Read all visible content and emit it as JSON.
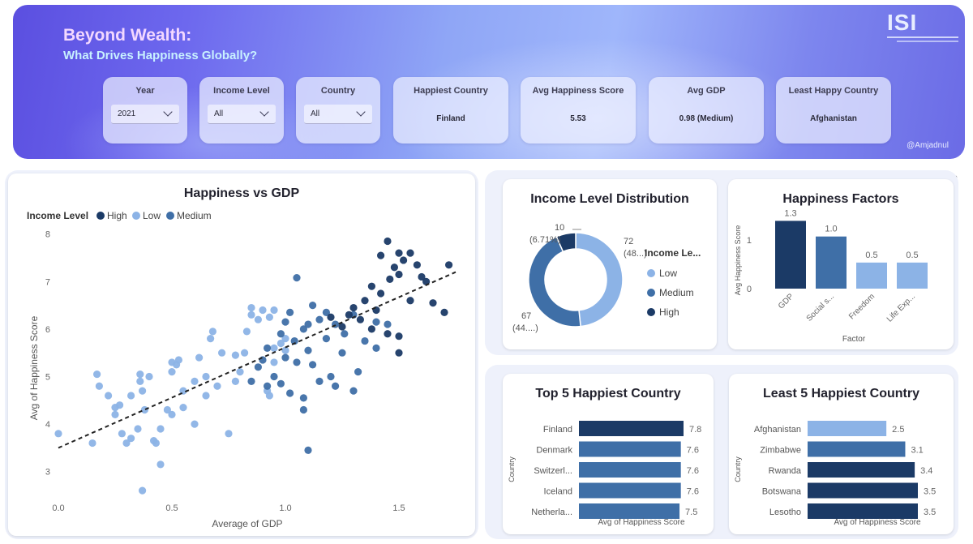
{
  "header": {
    "title": "Beyond Wealth:",
    "subtitle": "What Drives Happiness Globally?",
    "logo_text": "ISI",
    "credit": "@Amjadnul"
  },
  "filters": [
    {
      "label": "Year",
      "value": "2021"
    },
    {
      "label": "Income Level",
      "value": "All"
    },
    {
      "label": "Country",
      "value": "All"
    }
  ],
  "kpis": [
    {
      "label": "Happiest Country",
      "value": "Finland"
    },
    {
      "label": "Avg Happiness Score",
      "value": "5.53"
    },
    {
      "label": "Avg GDP",
      "value": "0.98 (Medium)"
    },
    {
      "label": "Least Happy Country",
      "value": "Afghanistan"
    }
  ],
  "colors": {
    "high": "#1b3a66",
    "medium": "#3f6fa7",
    "low": "#8cb3e6"
  },
  "icons": [
    "chevron-down-icon",
    "more-options-icon"
  ],
  "scatter": {
    "title": "Happiness vs GDP",
    "legend_title": "Income Level",
    "legend": [
      "High",
      "Low",
      "Medium"
    ],
    "xlabel": "Average of GDP",
    "ylabel": "Avg of Happiness Score",
    "xticks": [
      "0.0",
      "0.5",
      "1.0",
      "1.5"
    ],
    "yticks": [
      "3",
      "4",
      "5",
      "6",
      "7",
      "8"
    ]
  },
  "donut": {
    "title": "Income Level Distribution",
    "legend_title": "Income Le...",
    "legend": [
      "Low",
      "Medium",
      "High"
    ],
    "labels": [
      {
        "line1": "72",
        "line2": "(48...)"
      },
      {
        "line1": "67",
        "line2": "(44....)"
      },
      {
        "line1": "10",
        "line2": "(6.71%)"
      }
    ]
  },
  "factors": {
    "title": "Happiness Factors",
    "xlabel": "Factor",
    "ylabel": "Avg Happiness Score",
    "yticks": [
      "0",
      "1"
    ],
    "categories": [
      "GDP",
      "Social s...",
      "Freedom",
      "Life Exp..."
    ],
    "value_labels": [
      "1.3",
      "1.0",
      "0.5",
      "0.5"
    ]
  },
  "top5": {
    "title": "Top 5 Happiest Country",
    "ylabel": "Country",
    "xlabel": "Avg of Happiness Score",
    "countries": [
      "Finland",
      "Denmark",
      "Switzerl...",
      "Iceland",
      "Netherla..."
    ],
    "value_labels": [
      "7.8",
      "7.6",
      "7.6",
      "7.6",
      "7.5"
    ]
  },
  "least5": {
    "title": "Least 5 Happiest Country",
    "ylabel": "Country",
    "xlabel": "Avg of Happiness Score",
    "countries": [
      "Afghanistan",
      "Zimbabwe",
      "Rwanda",
      "Botswana",
      "Lesotho"
    ],
    "value_labels": [
      "2.5",
      "3.1",
      "3.4",
      "3.5",
      "3.5"
    ]
  },
  "chart_data": [
    {
      "type": "scatter",
      "title": "Happiness vs GDP",
      "xlabel": "Average of GDP",
      "ylabel": "Avg of Happiness Score",
      "xlim": [
        0,
        1.75
      ],
      "ylim": [
        2.5,
        8.2
      ],
      "trendline": {
        "x": [
          0,
          1.75
        ],
        "y": [
          3.5,
          7.2
        ]
      },
      "series": [
        {
          "name": "High",
          "points": [
            [
              1.45,
              7.85
            ],
            [
              1.5,
              7.6
            ],
            [
              1.52,
              7.45
            ],
            [
              1.48,
              7.3
            ],
            [
              1.42,
              7.55
            ],
            [
              1.55,
              7.6
            ],
            [
              1.58,
              7.35
            ],
            [
              1.6,
              7.1
            ],
            [
              1.72,
              7.35
            ],
            [
              1.62,
              7.0
            ],
            [
              1.5,
              7.15
            ],
            [
              1.46,
              7.05
            ],
            [
              1.38,
              6.9
            ],
            [
              1.42,
              6.75
            ],
            [
              1.55,
              6.6
            ],
            [
              1.65,
              6.55
            ],
            [
              1.7,
              6.35
            ],
            [
              1.35,
              6.6
            ],
            [
              1.3,
              6.45
            ],
            [
              1.4,
              6.4
            ],
            [
              1.28,
              6.3
            ],
            [
              1.2,
              6.25
            ],
            [
              1.33,
              6.2
            ],
            [
              1.25,
              6.05
            ],
            [
              1.38,
              6.0
            ],
            [
              1.45,
              5.9
            ],
            [
              1.5,
              5.85
            ],
            [
              1.5,
              5.5
            ]
          ]
        },
        {
          "name": "Medium",
          "points": [
            [
              1.05,
              7.08
            ],
            [
              1.3,
              6.3
            ],
            [
              1.22,
              6.1
            ],
            [
              1.12,
              6.5
            ],
            [
              1.02,
              6.35
            ],
            [
              1.15,
              6.2
            ],
            [
              1.08,
              6.0
            ],
            [
              0.98,
              5.9
            ],
            [
              1.04,
              5.75
            ],
            [
              1.18,
              5.8
            ],
            [
              1.1,
              5.55
            ],
            [
              1.0,
              5.4
            ],
            [
              0.92,
              5.6
            ],
            [
              1.05,
              5.3
            ],
            [
              1.12,
              5.25
            ],
            [
              1.25,
              5.5
            ],
            [
              1.2,
              5.0
            ],
            [
              1.32,
              5.1
            ],
            [
              1.22,
              4.8
            ],
            [
              1.3,
              4.7
            ],
            [
              1.4,
              5.6
            ],
            [
              1.45,
              6.1
            ],
            [
              1.1,
              6.1
            ],
            [
              1.0,
              6.15
            ],
            [
              0.95,
              5.0
            ],
            [
              0.98,
              4.85
            ],
            [
              1.02,
              4.65
            ],
            [
              0.85,
              4.9
            ],
            [
              0.88,
              5.2
            ],
            [
              0.9,
              5.35
            ],
            [
              0.92,
              4.8
            ],
            [
              1.15,
              4.9
            ],
            [
              1.08,
              4.55
            ],
            [
              1.35,
              5.75
            ],
            [
              1.26,
              5.9
            ],
            [
              1.18,
              6.35
            ],
            [
              1.4,
              6.15
            ],
            [
              1.1,
              3.45
            ],
            [
              1.08,
              4.3
            ]
          ]
        },
        {
          "name": "Low",
          "points": [
            [
              0.0,
              3.8
            ],
            [
              0.15,
              3.6
            ],
            [
              0.18,
              4.8
            ],
            [
              0.17,
              5.05
            ],
            [
              0.22,
              4.6
            ],
            [
              0.25,
              4.2
            ],
            [
              0.27,
              4.4
            ],
            [
              0.28,
              3.8
            ],
            [
              0.3,
              3.6
            ],
            [
              0.32,
              3.7
            ],
            [
              0.35,
              3.9
            ],
            [
              0.36,
              4.9
            ],
            [
              0.37,
              4.7
            ],
            [
              0.36,
              5.05
            ],
            [
              0.38,
              4.3
            ],
            [
              0.4,
              5.0
            ],
            [
              0.42,
              3.65
            ],
            [
              0.43,
              3.6
            ],
            [
              0.45,
              3.15
            ],
            [
              0.48,
              4.3
            ],
            [
              0.5,
              5.1
            ],
            [
              0.5,
              5.3
            ],
            [
              0.52,
              5.25
            ],
            [
              0.53,
              5.35
            ],
            [
              0.5,
              4.2
            ],
            [
              0.55,
              4.35
            ],
            [
              0.6,
              4.0
            ],
            [
              0.62,
              5.4
            ],
            [
              0.65,
              5.0
            ],
            [
              0.65,
              4.6
            ],
            [
              0.67,
              5.8
            ],
            [
              0.68,
              5.95
            ],
            [
              0.7,
              4.8
            ],
            [
              0.72,
              5.5
            ],
            [
              0.75,
              3.8
            ],
            [
              0.78,
              4.9
            ],
            [
              0.8,
              5.1
            ],
            [
              0.82,
              5.5
            ],
            [
              0.83,
              5.95
            ],
            [
              0.85,
              6.3
            ],
            [
              0.85,
              6.45
            ],
            [
              0.88,
              6.2
            ],
            [
              0.9,
              6.4
            ],
            [
              0.93,
              6.25
            ],
            [
              0.95,
              6.4
            ],
            [
              0.92,
              4.7
            ],
            [
              0.93,
              4.6
            ],
            [
              0.95,
              5.3
            ],
            [
              0.98,
              5.7
            ],
            [
              1.0,
              5.8
            ],
            [
              1.0,
              5.55
            ],
            [
              0.95,
              5.6
            ],
            [
              0.78,
              5.45
            ],
            [
              0.6,
              4.9
            ],
            [
              0.55,
              4.7
            ],
            [
              0.45,
              3.9
            ],
            [
              0.37,
              2.6
            ],
            [
              0.32,
              4.6
            ],
            [
              0.25,
              4.35
            ]
          ]
        }
      ]
    },
    {
      "type": "pie",
      "title": "Income Level Distribution",
      "categories": [
        "Low",
        "Medium",
        "High"
      ],
      "values": [
        72,
        67,
        10
      ],
      "donut": true
    },
    {
      "type": "bar",
      "title": "Happiness Factors",
      "categories": [
        "GDP",
        "Social s...",
        "Freedom",
        "Life Exp..."
      ],
      "values": [
        1.3,
        1.0,
        0.5,
        0.5
      ],
      "xlabel": "Factor",
      "ylabel": "Avg Happiness Score",
      "ylim": [
        0,
        1.4
      ]
    },
    {
      "type": "bar",
      "orientation": "horizontal",
      "title": "Top 5 Happiest Country",
      "categories": [
        "Finland",
        "Denmark",
        "Switzerl...",
        "Iceland",
        "Netherla..."
      ],
      "values": [
        7.8,
        7.6,
        7.6,
        7.6,
        7.5
      ],
      "xlabel": "Avg of Happiness Score",
      "ylabel": "Country"
    },
    {
      "type": "bar",
      "orientation": "horizontal",
      "title": "Least 5 Happiest Country",
      "categories": [
        "Afghanistan",
        "Zimbabwe",
        "Rwanda",
        "Botswana",
        "Lesotho"
      ],
      "values": [
        2.5,
        3.1,
        3.4,
        3.5,
        3.5
      ],
      "xlabel": "Avg of Happiness Score",
      "ylabel": "Country"
    }
  ]
}
